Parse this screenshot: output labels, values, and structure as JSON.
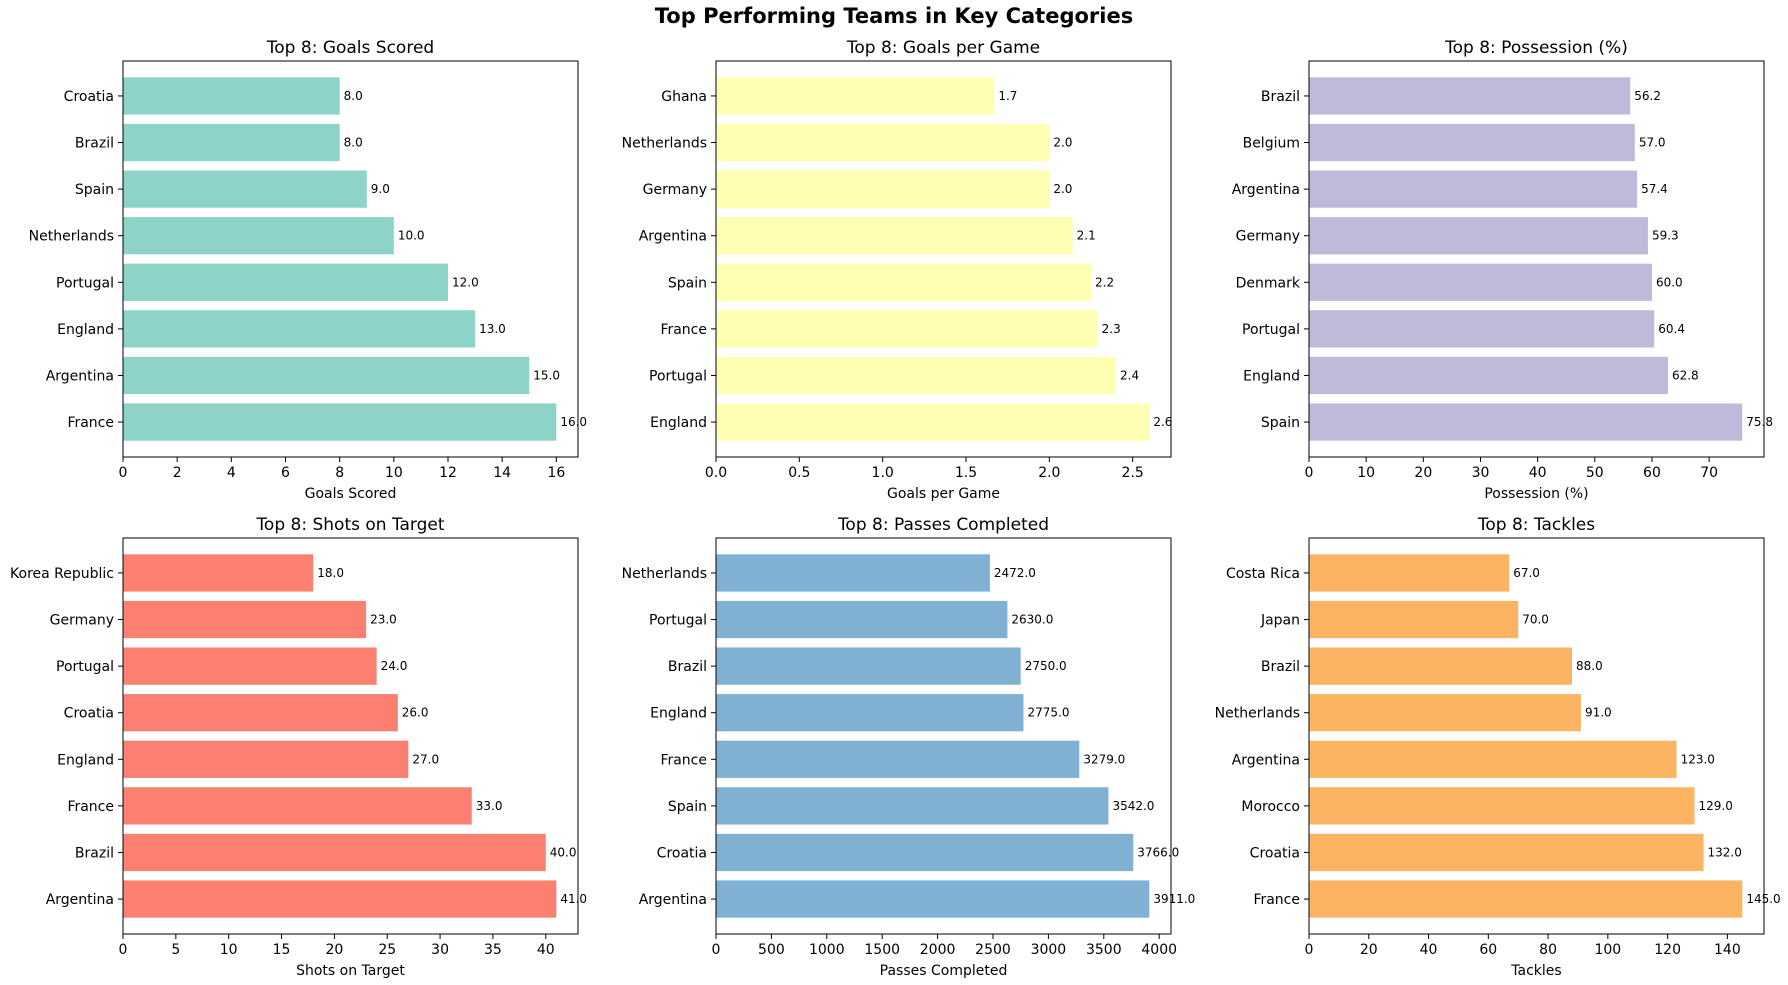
{
  "suptitle": "Top Performing Teams in Key Categories",
  "chart_data": [
    {
      "type": "bar",
      "orientation": "horizontal",
      "title": "Top 8: Goals Scored",
      "xlabel": "Goals Scored",
      "color": "#8dd3c7",
      "categories": [
        "France",
        "Argentina",
        "England",
        "Portugal",
        "Netherlands",
        "Spain",
        "Brazil",
        "Croatia"
      ],
      "values": [
        16.0,
        15.0,
        13.0,
        12.0,
        10.0,
        9.0,
        8.0,
        8.0
      ],
      "labels": [
        "16.0",
        "15.0",
        "13.0",
        "12.0",
        "10.0",
        "9.0",
        "8.0",
        "8.0"
      ],
      "xlim": [
        0,
        16.8
      ],
      "xticks": [
        0,
        2,
        4,
        6,
        8,
        10,
        12,
        14,
        16
      ],
      "xtick_labels": [
        "0",
        "2",
        "4",
        "6",
        "8",
        "10",
        "12",
        "14",
        "16"
      ]
    },
    {
      "type": "bar",
      "orientation": "horizontal",
      "title": "Top 8: Goals per Game",
      "xlabel": "Goals per Game",
      "color": "#ffffb3",
      "categories": [
        "England",
        "Portugal",
        "France",
        "Spain",
        "Argentina",
        "Germany",
        "Netherlands",
        "Ghana"
      ],
      "values": [
        2.6,
        2.4,
        2.29,
        2.25,
        2.14,
        2.0,
        2.0,
        1.67
      ],
      "labels": [
        "2.6",
        "2.4",
        "2.3",
        "2.2",
        "2.1",
        "2.0",
        "2.0",
        "1.7"
      ],
      "xlim": [
        0,
        2.73
      ],
      "xticks": [
        0,
        0.5,
        1.0,
        1.5,
        2.0,
        2.5
      ],
      "xtick_labels": [
        "0.0",
        "0.5",
        "1.0",
        "1.5",
        "2.0",
        "2.5"
      ]
    },
    {
      "type": "bar",
      "orientation": "horizontal",
      "title": "Top 8: Possession (%)",
      "xlabel": "Possession (%)",
      "color": "#bebada",
      "categories": [
        "Spain",
        "England",
        "Portugal",
        "Denmark",
        "Germany",
        "Argentina",
        "Belgium",
        "Brazil"
      ],
      "values": [
        75.8,
        62.8,
        60.4,
        60.0,
        59.3,
        57.4,
        57.0,
        56.2
      ],
      "labels": [
        "75.8",
        "62.8",
        "60.4",
        "60.0",
        "59.3",
        "57.4",
        "57.0",
        "56.2"
      ],
      "xlim": [
        0,
        79.6
      ],
      "xticks": [
        0,
        10,
        20,
        30,
        40,
        50,
        60,
        70
      ],
      "xtick_labels": [
        "0",
        "10",
        "20",
        "30",
        "40",
        "50",
        "60",
        "70"
      ]
    },
    {
      "type": "bar",
      "orientation": "horizontal",
      "title": "Top 8: Shots on Target",
      "xlabel": "Shots on Target",
      "color": "#fb8072",
      "categories": [
        "Argentina",
        "Brazil",
        "France",
        "England",
        "Croatia",
        "Portugal",
        "Germany",
        "Korea Republic"
      ],
      "values": [
        41.0,
        40.0,
        33.0,
        27.0,
        26.0,
        24.0,
        23.0,
        18.0
      ],
      "labels": [
        "41.0",
        "40.0",
        "33.0",
        "27.0",
        "26.0",
        "24.0",
        "23.0",
        "18.0"
      ],
      "xlim": [
        0,
        43.05
      ],
      "xticks": [
        0,
        5,
        10,
        15,
        20,
        25,
        30,
        35,
        40
      ],
      "xtick_labels": [
        "0",
        "5",
        "10",
        "15",
        "20",
        "25",
        "30",
        "35",
        "40"
      ]
    },
    {
      "type": "bar",
      "orientation": "horizontal",
      "title": "Top 8: Passes Completed",
      "xlabel": "Passes Completed",
      "color": "#80b1d3",
      "categories": [
        "Argentina",
        "Croatia",
        "Spain",
        "France",
        "England",
        "Brazil",
        "Portugal",
        "Netherlands"
      ],
      "values": [
        3911.0,
        3766.0,
        3542.0,
        3279.0,
        2775.0,
        2750.0,
        2630.0,
        2472.0
      ],
      "labels": [
        "3911.0",
        "3766.0",
        "3542.0",
        "3279.0",
        "2775.0",
        "2750.0",
        "2630.0",
        "2472.0"
      ],
      "xlim": [
        0,
        4106.5
      ],
      "xticks": [
        0,
        500,
        1000,
        1500,
        2000,
        2500,
        3000,
        3500,
        4000
      ],
      "xtick_labels": [
        "0",
        "500",
        "1000",
        "1500",
        "2000",
        "2500",
        "3000",
        "3500",
        "4000"
      ]
    },
    {
      "type": "bar",
      "orientation": "horizontal",
      "title": "Top 8: Tackles",
      "xlabel": "Tackles",
      "color": "#fdb462",
      "categories": [
        "France",
        "Croatia",
        "Morocco",
        "Argentina",
        "Netherlands",
        "Brazil",
        "Japan",
        "Costa Rica"
      ],
      "values": [
        145.0,
        132.0,
        129.0,
        123.0,
        91.0,
        88.0,
        70.0,
        67.0
      ],
      "labels": [
        "145.0",
        "132.0",
        "129.0",
        "123.0",
        "91.0",
        "88.0",
        "70.0",
        "67.0"
      ],
      "xlim": [
        0,
        152.25
      ],
      "xticks": [
        0,
        20,
        40,
        60,
        80,
        100,
        120,
        140
      ],
      "xtick_labels": [
        "0",
        "20",
        "40",
        "60",
        "80",
        "100",
        "120",
        "140"
      ]
    }
  ]
}
